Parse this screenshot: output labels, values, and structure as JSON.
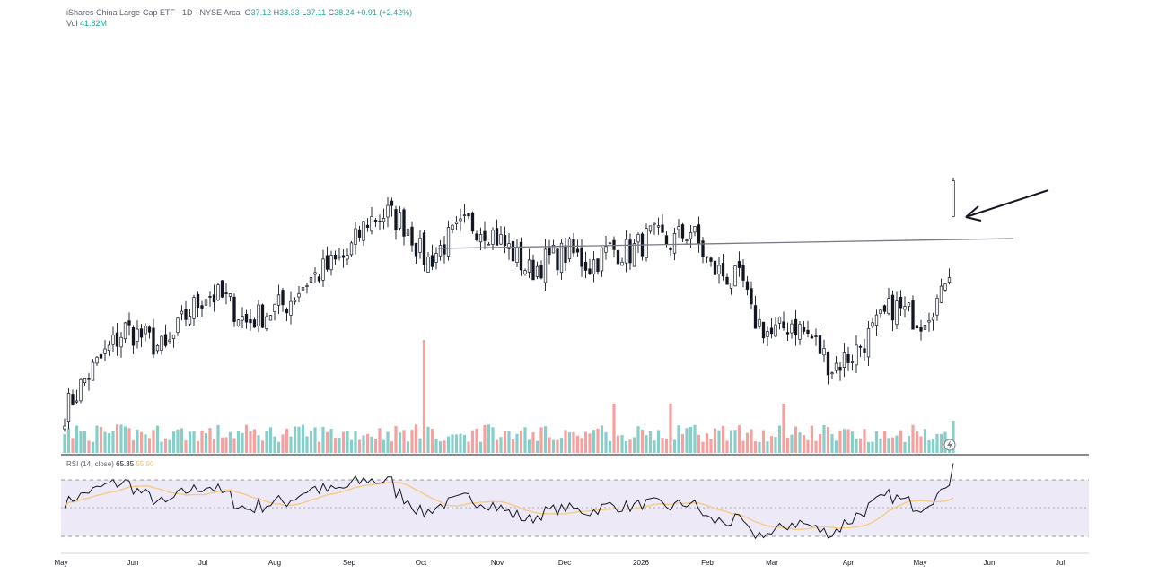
{
  "header": {
    "title": "iShares China Large-Cap ETF · 1D · NYSE Arca",
    "o_label": "O",
    "o_value": "37.12",
    "h_label": "H",
    "h_value": "38.33",
    "l_label": "L",
    "l_value": "37.11",
    "c_label": "C",
    "c_value": "38.24",
    "change": "+0.91 (+2.42%)",
    "vol_label": "Vol",
    "vol_value": "41.82M"
  },
  "rsi": {
    "label": "RSI (14, close)",
    "value": "65.35",
    "ma_value": "55.90"
  },
  "colors": {
    "up": "#26a69a",
    "down": "#ef5350",
    "candle": "#131722",
    "rsi_line": "#131722",
    "rsi_ma": "#f5c97e",
    "rsi_band": "#ede9f7",
    "trendline": "#787b86"
  },
  "icons": [
    "arrow-annotation-icon",
    "bolt-icon"
  ],
  "chart_data": {
    "type": "candlestick",
    "x_labels": [
      "May",
      "Jun",
      "Jul",
      "Aug",
      "Sep",
      "Oct",
      "Nov",
      "Dec",
      "2026",
      "Feb",
      "Mar",
      "Apr",
      "May",
      "Jun",
      "Jul"
    ],
    "close_anchors": [
      [
        0,
        31.0
      ],
      [
        5,
        32.0
      ],
      [
        10,
        32.8
      ],
      [
        15,
        33.6
      ],
      [
        20,
        33.3
      ],
      [
        25,
        32.9
      ],
      [
        30,
        34.0
      ],
      [
        35,
        34.7
      ],
      [
        40,
        34.5
      ],
      [
        45,
        33.8
      ],
      [
        50,
        34.1
      ],
      [
        55,
        34.4
      ],
      [
        60,
        35.1
      ],
      [
        65,
        35.5
      ],
      [
        70,
        35.9
      ],
      [
        75,
        37.0
      ],
      [
        80,
        37.2
      ],
      [
        85,
        36.8
      ],
      [
        88,
        36.0
      ],
      [
        89,
        35.6
      ],
      [
        95,
        36.4
      ],
      [
        100,
        36.9
      ],
      [
        105,
        36.7
      ],
      [
        110,
        36.1
      ],
      [
        115,
        35.4
      ],
      [
        120,
        35.8
      ],
      [
        125,
        36.0
      ],
      [
        130,
        35.6
      ],
      [
        135,
        36.1
      ],
      [
        140,
        36.0
      ],
      [
        145,
        36.5
      ],
      [
        150,
        36.3
      ],
      [
        155,
        36.7
      ],
      [
        160,
        35.5
      ],
      [
        165,
        35.2
      ],
      [
        168,
        35.0
      ],
      [
        170,
        34.0
      ],
      [
        175,
        33.4
      ],
      [
        180,
        33.8
      ],
      [
        185,
        33.3
      ],
      [
        190,
        32.4
      ],
      [
        195,
        32.8
      ],
      [
        200,
        33.5
      ],
      [
        205,
        34.3
      ],
      [
        208,
        34.1
      ],
      [
        212,
        33.9
      ],
      [
        215,
        34.4
      ],
      [
        218,
        34.6
      ],
      [
        220,
        35.1
      ]
    ],
    "ohlc_last": {
      "open": 37.12,
      "high": 38.33,
      "low": 37.11,
      "close": 38.24
    },
    "trendline": {
      "start": {
        "bar": 89,
        "price": 35.5
      },
      "end": {
        "bar": 230,
        "price": 35.55
      }
    },
    "annotation": "arrow pointing at breakout candle",
    "volume_last": "41.82M",
    "rsi_period": 14,
    "rsi_last": 65.35,
    "rsi_ma_last": 55.9,
    "rsi_bands": [
      70,
      50,
      30
    ]
  }
}
